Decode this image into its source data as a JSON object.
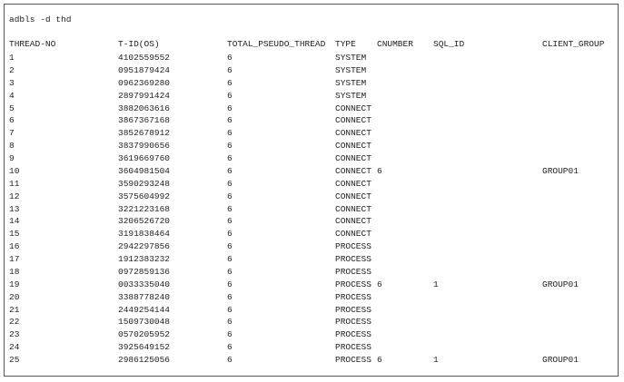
{
  "command": "adbls -d thd",
  "table": {
    "header": {
      "thread_no": "THREAD-NO",
      "tid": "T-ID(OS)",
      "total": "TOTAL_PSEUDO_THREAD",
      "type": "TYPE",
      "cnumber": "CNUMBER",
      "sql_id": "SQL_ID",
      "client_group": "CLIENT_GROUP"
    },
    "rows": [
      {
        "thread_no": "1",
        "tid": "4102559552",
        "total": "6",
        "type": "SYSTEM"
      },
      {
        "thread_no": "2",
        "tid": "0951879424",
        "total": "6",
        "type": "SYSTEM"
      },
      {
        "thread_no": "3",
        "tid": "0962369280",
        "total": "6",
        "type": "SYSTEM"
      },
      {
        "thread_no": "4",
        "tid": "2897991424",
        "total": "6",
        "type": "SYSTEM"
      },
      {
        "thread_no": "5",
        "tid": "3882063616",
        "total": "6",
        "type": "CONNECT"
      },
      {
        "thread_no": "6",
        "tid": "3867367168",
        "total": "6",
        "type": "CONNECT"
      },
      {
        "thread_no": "7",
        "tid": "3852678912",
        "total": "6",
        "type": "CONNECT"
      },
      {
        "thread_no": "8",
        "tid": "3837990656",
        "total": "6",
        "type": "CONNECT"
      },
      {
        "thread_no": "9",
        "tid": "3619669760",
        "total": "6",
        "type": "CONNECT"
      },
      {
        "thread_no": "10",
        "tid": "3604981504",
        "total": "6",
        "type": "CONNECT",
        "cnumber": "6",
        "client_group": "GROUP01"
      },
      {
        "thread_no": "11",
        "tid": "3590293248",
        "total": "6",
        "type": "CONNECT"
      },
      {
        "thread_no": "12",
        "tid": "3575604992",
        "total": "6",
        "type": "CONNECT"
      },
      {
        "thread_no": "13",
        "tid": "3221223168",
        "total": "6",
        "type": "CONNECT"
      },
      {
        "thread_no": "14",
        "tid": "3206526720",
        "total": "6",
        "type": "CONNECT"
      },
      {
        "thread_no": "15",
        "tid": "3191838464",
        "total": "6",
        "type": "CONNECT"
      },
      {
        "thread_no": "16",
        "tid": "2942297856",
        "total": "6",
        "type": "PROCESS"
      },
      {
        "thread_no": "17",
        "tid": "1912383232",
        "total": "6",
        "type": "PROCESS"
      },
      {
        "thread_no": "18",
        "tid": "0972859136",
        "total": "6",
        "type": "PROCESS"
      },
      {
        "thread_no": "19",
        "tid": "0033335040",
        "total": "6",
        "type": "PROCESS",
        "cnumber": "6",
        "sql_id": "1",
        "client_group": "GROUP01"
      },
      {
        "thread_no": "20",
        "tid": "3388778240",
        "total": "6",
        "type": "PROCESS"
      },
      {
        "thread_no": "21",
        "tid": "2449254144",
        "total": "6",
        "type": "PROCESS"
      },
      {
        "thread_no": "22",
        "tid": "1509730048",
        "total": "6",
        "type": "PROCESS"
      },
      {
        "thread_no": "23",
        "tid": "0570205952",
        "total": "6",
        "type": "PROCESS"
      },
      {
        "thread_no": "24",
        "tid": "3925649152",
        "total": "6",
        "type": "PROCESS"
      },
      {
        "thread_no": "25",
        "tid": "2986125056",
        "total": "6",
        "type": "PROCESS",
        "cnumber": "6",
        "sql_id": "1",
        "client_group": "GROUP01"
      }
    ]
  }
}
